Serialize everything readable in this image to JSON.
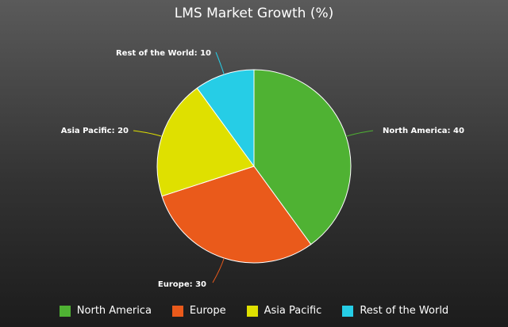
{
  "chart_data": {
    "type": "pie",
    "title": "LMS Market Growth (%)",
    "categories": [
      "North America",
      "Europe",
      "Asia Pacific",
      "Rest of the World"
    ],
    "values": [
      40,
      30,
      20,
      10
    ],
    "colors": [
      "#4fb233",
      "#ea5a1b",
      "#dfe000",
      "#26cde6"
    ],
    "data_labels": [
      "North America: 40",
      "Europe: 30",
      "Asia Pacific: 20",
      "Rest of the World: 10"
    ],
    "legend_position": "bottom"
  }
}
